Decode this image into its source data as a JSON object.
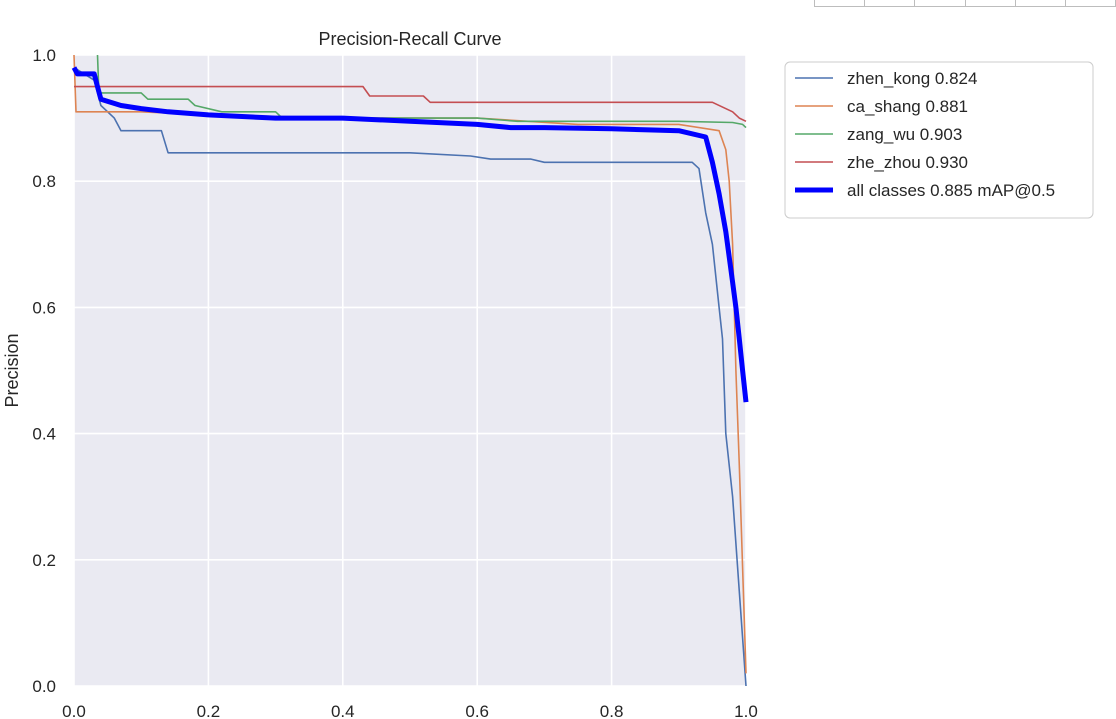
{
  "chart_data": {
    "type": "line",
    "title": "Precision-Recall Curve",
    "xlabel": "",
    "ylabel": "Precision",
    "xlim": [
      0,
      1
    ],
    "ylim": [
      0,
      1
    ],
    "xticks": [
      "0.0",
      "0.2",
      "0.4",
      "0.6",
      "0.8",
      "1.0"
    ],
    "yticks": [
      "0.0",
      "0.2",
      "0.4",
      "0.6",
      "0.8",
      "1.0"
    ],
    "grid": true,
    "legend_position": "outside-top-right",
    "colors": {
      "plot_background": "#eaeaf2",
      "grid": "#ffffff"
    },
    "series": [
      {
        "name": "zhen_kong 0.824",
        "color": "#4c72b0",
        "width": "thin",
        "points": [
          [
            0,
            0.98
          ],
          [
            0.03,
            0.96
          ],
          [
            0.04,
            0.92
          ],
          [
            0.06,
            0.9
          ],
          [
            0.07,
            0.88
          ],
          [
            0.13,
            0.88
          ],
          [
            0.14,
            0.845
          ],
          [
            0.4,
            0.845
          ],
          [
            0.5,
            0.845
          ],
          [
            0.59,
            0.84
          ],
          [
            0.62,
            0.835
          ],
          [
            0.68,
            0.835
          ],
          [
            0.7,
            0.83
          ],
          [
            0.92,
            0.83
          ],
          [
            0.93,
            0.82
          ],
          [
            0.94,
            0.75
          ],
          [
            0.95,
            0.7
          ],
          [
            0.96,
            0.6
          ],
          [
            0.965,
            0.55
          ],
          [
            0.97,
            0.4
          ],
          [
            0.98,
            0.3
          ],
          [
            0.99,
            0.15
          ],
          [
            1.0,
            0.0
          ]
        ]
      },
      {
        "name": "ca_shang 0.881",
        "color": "#dd8452",
        "width": "thin",
        "points": [
          [
            0,
            1.0
          ],
          [
            0.003,
            0.91
          ],
          [
            0.1,
            0.91
          ],
          [
            0.2,
            0.905
          ],
          [
            0.4,
            0.9
          ],
          [
            0.6,
            0.9
          ],
          [
            0.75,
            0.89
          ],
          [
            0.9,
            0.89
          ],
          [
            0.96,
            0.88
          ],
          [
            0.97,
            0.85
          ],
          [
            0.975,
            0.8
          ],
          [
            0.98,
            0.7
          ],
          [
            0.985,
            0.5
          ],
          [
            0.99,
            0.35
          ],
          [
            1.0,
            0.02
          ]
        ]
      },
      {
        "name": "zang_wu 0.903",
        "color": "#55a868",
        "width": "thin",
        "points": [
          [
            0.035,
            1.0
          ],
          [
            0.037,
            0.94
          ],
          [
            0.1,
            0.94
          ],
          [
            0.11,
            0.93
          ],
          [
            0.17,
            0.93
          ],
          [
            0.18,
            0.92
          ],
          [
            0.22,
            0.91
          ],
          [
            0.3,
            0.91
          ],
          [
            0.31,
            0.9
          ],
          [
            0.6,
            0.9
          ],
          [
            0.66,
            0.895
          ],
          [
            0.9,
            0.895
          ],
          [
            0.98,
            0.893
          ],
          [
            0.995,
            0.89
          ],
          [
            1.0,
            0.885
          ]
        ]
      },
      {
        "name": "zhe_zhou 0.930",
        "color": "#c44e52",
        "width": "thin",
        "points": [
          [
            0,
            0.95
          ],
          [
            0.43,
            0.95
          ],
          [
            0.44,
            0.935
          ],
          [
            0.52,
            0.935
          ],
          [
            0.53,
            0.925
          ],
          [
            0.95,
            0.925
          ],
          [
            0.98,
            0.91
          ],
          [
            0.99,
            0.9
          ],
          [
            1.0,
            0.895
          ]
        ]
      },
      {
        "name": "all classes 0.885 mAP@0.5",
        "color": "#0000ff",
        "width": "thick",
        "points": [
          [
            0,
            0.98
          ],
          [
            0.005,
            0.97
          ],
          [
            0.03,
            0.97
          ],
          [
            0.035,
            0.95
          ],
          [
            0.04,
            0.93
          ],
          [
            0.07,
            0.92
          ],
          [
            0.1,
            0.915
          ],
          [
            0.14,
            0.91
          ],
          [
            0.2,
            0.905
          ],
          [
            0.3,
            0.9
          ],
          [
            0.4,
            0.9
          ],
          [
            0.5,
            0.895
          ],
          [
            0.6,
            0.89
          ],
          [
            0.65,
            0.885
          ],
          [
            0.7,
            0.885
          ],
          [
            0.8,
            0.883
          ],
          [
            0.9,
            0.88
          ],
          [
            0.94,
            0.87
          ],
          [
            0.95,
            0.83
          ],
          [
            0.96,
            0.78
          ],
          [
            0.97,
            0.72
          ],
          [
            0.975,
            0.68
          ],
          [
            0.98,
            0.64
          ],
          [
            0.985,
            0.6
          ],
          [
            0.99,
            0.55
          ],
          [
            0.995,
            0.5
          ],
          [
            1.0,
            0.45
          ]
        ]
      }
    ]
  }
}
